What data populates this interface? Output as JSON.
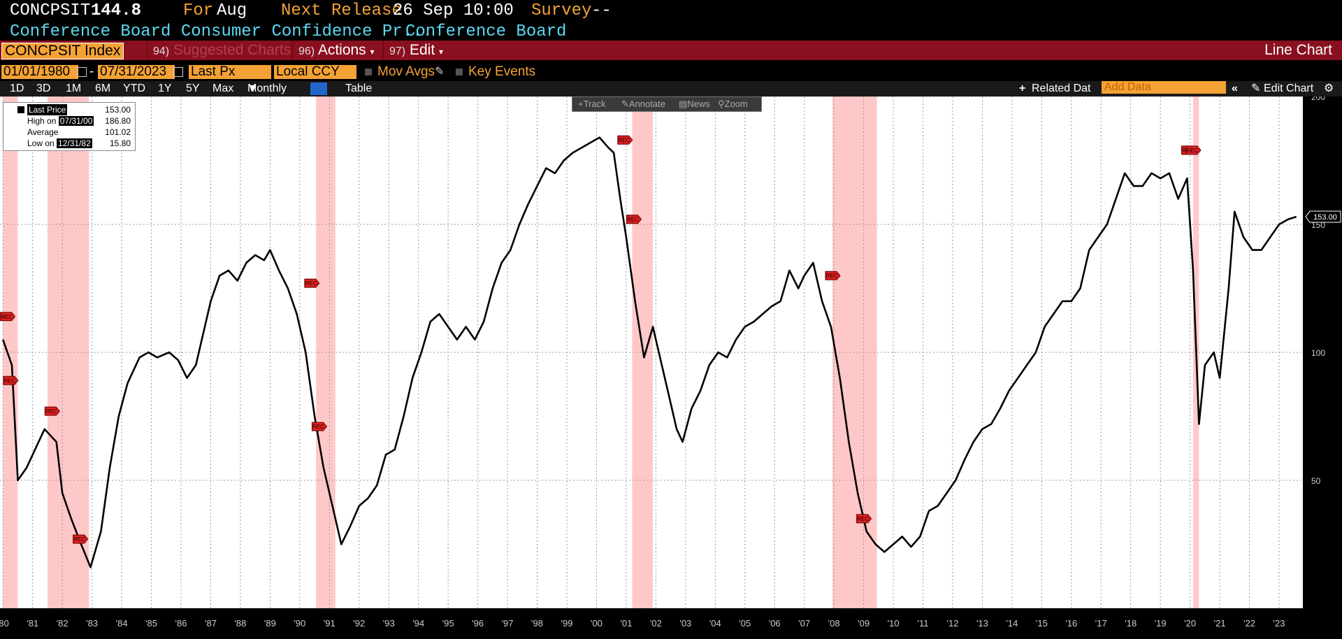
{
  "header": {
    "ticker": "CONCPSIT",
    "value": "144.8",
    "for_label": "For",
    "for_value": "Aug",
    "next_release_label": "Next Release",
    "next_release_value": "26 Sep 10:00",
    "survey_label": "Survey",
    "survey_value": "--",
    "name": "Conference Board Consumer Confidence Pr...",
    "source": "Conference Board"
  },
  "toolbar": {
    "security": "CONCPSIT Index",
    "suggested_num": "94)",
    "suggested_label": "Suggested Charts",
    "actions_num": "96)",
    "actions_label": "Actions",
    "edit_num": "97)",
    "edit_label": "Edit",
    "chart_type": "Line Chart"
  },
  "options": {
    "start_date": "01/01/1980",
    "dash": "-",
    "end_date": "07/31/2023",
    "field": "Last Px",
    "currency": "Local CCY",
    "mov_avgs": "Mov Avgs",
    "key_events": "Key Events"
  },
  "ranges": {
    "items": [
      "1D",
      "3D",
      "1M",
      "6M",
      "YTD",
      "1Y",
      "5Y",
      "Max"
    ],
    "periodicity": "Monthly",
    "table": "Table",
    "related": "Related Dat",
    "add_data": "Add Data",
    "edit_chart": "Edit Chart"
  },
  "controls": {
    "track": "Track",
    "annotate": "Annotate",
    "news": "News",
    "zoom": "Zoom"
  },
  "legend": {
    "last_price_label": "Last Price",
    "last_price": "153.00",
    "high_label": "High on",
    "high_date": "07/31/00",
    "high_value": "186.80",
    "average_label": "Average",
    "average": "101.02",
    "low_label": "Low on",
    "low_date": "12/31/82",
    "low_value": "15.80"
  },
  "chart_data": {
    "type": "line",
    "series": [
      {
        "x": [
          1980.0,
          1980.3,
          1980.5,
          1980.8,
          1981.0,
          1981.4,
          1981.8,
          1982.0,
          1982.3,
          1982.6,
          1982.95,
          1983.3,
          1983.6,
          1983.9,
          1984.2,
          1984.6,
          1984.9,
          1985.2,
          1985.6,
          1985.9,
          1986.2,
          1986.5,
          1986.8,
          1987.0,
          1987.3,
          1987.6,
          1987.9,
          1988.2,
          1988.5,
          1988.8,
          1989.0,
          1989.3,
          1989.6,
          1989.9,
          1990.2,
          1990.5,
          1990.8,
          1991.1,
          1991.4,
          1991.7,
          1992.0,
          1992.3,
          1992.6,
          1992.9,
          1993.2,
          1993.5,
          1993.8,
          1994.1,
          1994.4,
          1994.7,
          1995.0,
          1995.3,
          1995.6,
          1995.9,
          1996.2,
          1996.5,
          1996.8,
          1997.1,
          1997.4,
          1997.7,
          1998.0,
          1998.3,
          1998.6,
          1998.9,
          1999.2,
          1999.5,
          1999.8,
          2000.1,
          2000.4,
          2000.58,
          2000.8,
          2001.0,
          2001.3,
          2001.6,
          2001.9,
          2002.1,
          2002.4,
          2002.7,
          2002.9,
          2003.2,
          2003.5,
          2003.8,
          2004.1,
          2004.4,
          2004.7,
          2005.0,
          2005.3,
          2005.6,
          2005.9,
          2006.2,
          2006.5,
          2006.8,
          2007.0,
          2007.3,
          2007.6,
          2007.9,
          2008.2,
          2008.5,
          2008.8,
          2009.1,
          2009.4,
          2009.7,
          2010.0,
          2010.3,
          2010.6,
          2010.9,
          2011.2,
          2011.5,
          2011.8,
          2012.1,
          2012.4,
          2012.7,
          2013.0,
          2013.3,
          2013.6,
          2013.9,
          2014.2,
          2014.5,
          2014.8,
          2015.1,
          2015.4,
          2015.7,
          2016.0,
          2016.3,
          2016.6,
          2016.9,
          2017.2,
          2017.5,
          2017.8,
          2018.1,
          2018.4,
          2018.7,
          2019.0,
          2019.3,
          2019.6,
          2019.9,
          2020.1,
          2020.3,
          2020.5,
          2020.8,
          2021.0,
          2021.3,
          2021.5,
          2021.8,
          2022.1,
          2022.4,
          2022.7,
          2023.0,
          2023.3,
          2023.58
        ],
        "values": [
          105,
          95,
          50,
          55,
          60,
          70,
          65,
          45,
          35,
          26,
          16,
          30,
          55,
          75,
          88,
          98,
          100,
          98,
          100,
          97,
          90,
          95,
          110,
          120,
          130,
          132,
          128,
          135,
          138,
          136,
          140,
          132,
          125,
          115,
          100,
          75,
          55,
          40,
          25,
          32,
          40,
          43,
          48,
          60,
          62,
          75,
          90,
          100,
          112,
          115,
          110,
          105,
          110,
          105,
          112,
          125,
          135,
          140,
          150,
          158,
          165,
          172,
          170,
          175,
          178,
          180,
          182,
          184,
          180,
          178,
          160,
          145,
          120,
          98,
          110,
          100,
          85,
          70,
          65,
          78,
          85,
          95,
          100,
          98,
          105,
          110,
          112,
          115,
          118,
          120,
          132,
          125,
          130,
          135,
          120,
          110,
          90,
          65,
          45,
          30,
          25,
          22,
          25,
          28,
          24,
          28,
          38,
          40,
          45,
          50,
          58,
          65,
          70,
          72,
          78,
          85,
          90,
          95,
          100,
          110,
          115,
          120,
          120,
          125,
          140,
          145,
          150,
          160,
          170,
          165,
          165,
          170,
          168,
          170,
          160,
          168,
          132,
          72,
          95,
          100,
          90,
          125,
          155,
          145,
          140,
          140,
          145,
          150,
          152,
          153
        ],
        "color": "#000000"
      }
    ],
    "xlim": [
      1979.9,
      2023.8
    ],
    "ylim": [
      0,
      200
    ],
    "yticks": [
      50,
      100,
      150,
      200
    ],
    "xtick_labels": [
      "'80",
      "'81",
      "'82",
      "'83",
      "'84",
      "'85",
      "'86",
      "'87",
      "'88",
      "'89",
      "'90",
      "'91",
      "'92",
      "'93",
      "'94",
      "'95",
      "'96",
      "'97",
      "'98",
      "'99",
      "'00",
      "'01",
      "'02",
      "'03",
      "'04",
      "'05",
      "'06",
      "'07",
      "'08",
      "'09",
      "'10",
      "'11",
      "'12",
      "'13",
      "'14",
      "'15",
      "'16",
      "'17",
      "'18",
      "'19",
      "'20",
      "'21",
      "'22",
      "'23"
    ],
    "last_value_label": "153.00",
    "recessions": [
      [
        1980.0,
        1980.5
      ],
      [
        1981.5,
        1982.9
      ],
      [
        1990.55,
        1991.2
      ],
      [
        2001.2,
        2001.9
      ],
      [
        2007.95,
        2009.45
      ],
      [
        2020.1,
        2020.3
      ]
    ],
    "rec_label": "REC",
    "rec_markers": [
      [
        1980.15,
        114
      ],
      [
        1980.25,
        89
      ],
      [
        1981.65,
        77
      ],
      [
        1982.6,
        27
      ],
      [
        1990.4,
        127
      ],
      [
        1990.65,
        71
      ],
      [
        2000.95,
        183
      ],
      [
        2001.25,
        152
      ],
      [
        2007.95,
        130
      ],
      [
        2009.0,
        35
      ],
      [
        2019.95,
        179
      ],
      [
        2020.1,
        179
      ]
    ],
    "grid": true,
    "background": "#ffffff",
    "recession_color": "#ffc8c8",
    "axis_position": "right"
  }
}
